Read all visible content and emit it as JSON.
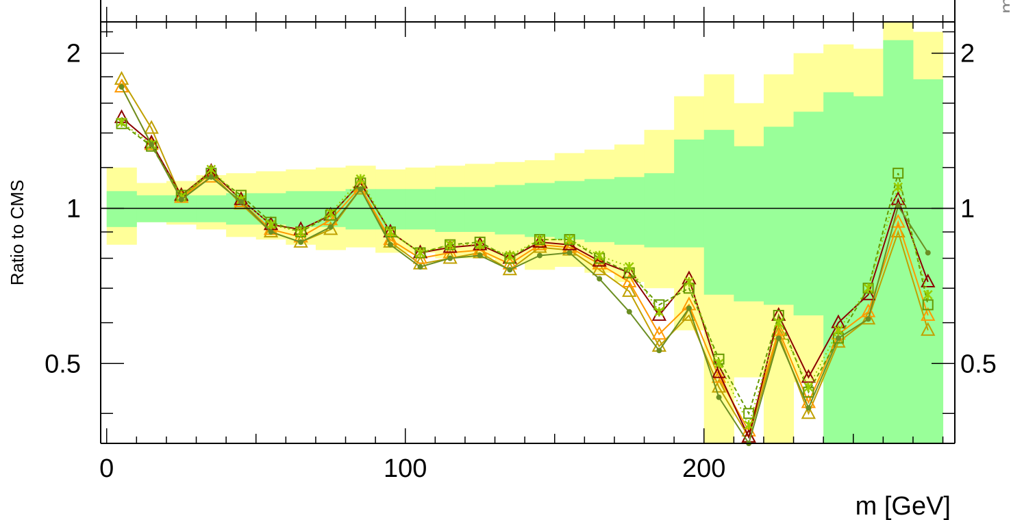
{
  "chart_data": {
    "type": "line",
    "ylabel": "Ratio to CMS",
    "xlabel": "m [GeV]",
    "corner_label": "m",
    "xlim": [
      -2,
      284
    ],
    "ylim": [
      0.35,
      2.3
    ],
    "y_log": true,
    "reference_line": 1,
    "x_ticks": [
      0,
      100,
      200
    ],
    "x_tick_labels": [
      "0",
      "100",
      "200"
    ],
    "y_ticks": [
      0.5,
      1,
      2
    ],
    "y_tick_labels": [
      "0.5",
      "1",
      "2"
    ],
    "bands": {
      "edges": [
        0,
        10,
        20,
        30,
        40,
        50,
        60,
        70,
        80,
        90,
        100,
        110,
        120,
        130,
        140,
        150,
        160,
        170,
        180,
        190,
        200,
        210,
        220,
        230,
        240,
        250,
        260,
        270,
        280
      ],
      "inner": {
        "color": "#99ff99",
        "lower": [
          0.92,
          0.94,
          0.94,
          0.94,
          0.93,
          0.93,
          0.92,
          0.92,
          0.91,
          0.91,
          0.91,
          0.9,
          0.9,
          0.89,
          0.88,
          0.87,
          0.86,
          0.85,
          0.84,
          0.84,
          0.68,
          0.66,
          0.65,
          0.62,
          0.35,
          0.35,
          0.35,
          0.35
        ],
        "upper": [
          1.08,
          1.06,
          1.06,
          1.06,
          1.07,
          1.07,
          1.08,
          1.08,
          1.09,
          1.09,
          1.09,
          1.1,
          1.1,
          1.11,
          1.12,
          1.13,
          1.14,
          1.15,
          1.17,
          1.36,
          1.42,
          1.32,
          1.44,
          1.54,
          1.68,
          1.65,
          2.12,
          1.78
        ]
      },
      "outer": {
        "color": "#ffff99",
        "lower": [
          0.85,
          0.94,
          0.93,
          0.91,
          0.88,
          0.87,
          0.85,
          0.83,
          0.84,
          0.82,
          0.82,
          0.8,
          0.8,
          0.78,
          0.76,
          0.77,
          0.75,
          0.72,
          0.7,
          0.58,
          0.35,
          0.47,
          0.35,
          0.46,
          0.35,
          0.35,
          0.51,
          0.35
        ],
        "upper": [
          1.2,
          1.12,
          1.13,
          1.16,
          1.17,
          1.18,
          1.19,
          1.2,
          1.21,
          1.19,
          1.2,
          1.21,
          1.22,
          1.23,
          1.24,
          1.28,
          1.3,
          1.33,
          1.42,
          1.65,
          1.82,
          1.6,
          1.82,
          2.0,
          2.08,
          2.04,
          2.3,
          2.2
        ]
      }
    },
    "x": [
      5,
      15,
      25,
      35,
      45,
      55,
      65,
      75,
      85,
      95,
      105,
      115,
      125,
      135,
      145,
      155,
      165,
      175,
      185,
      195,
      205,
      215,
      225,
      235,
      245,
      255,
      265,
      275
    ],
    "series": [
      {
        "color": "#c0a000",
        "marker": "triangle-open",
        "dash": "",
        "values": [
          1.78,
          1.43,
          1.05,
          1.17,
          1.02,
          0.9,
          0.86,
          0.91,
          1.09,
          0.86,
          0.78,
          0.8,
          0.82,
          0.76,
          0.84,
          0.83,
          0.76,
          0.69,
          0.54,
          0.62,
          0.45,
          0.36,
          0.57,
          0.4,
          0.55,
          0.61,
          0.9,
          0.58
        ]
      },
      {
        "color": "#ff9900",
        "marker": "triangle-open",
        "dash": "",
        "values": [
          1.72,
          1.33,
          1.05,
          1.15,
          1.03,
          0.91,
          0.88,
          0.95,
          1.1,
          0.87,
          0.8,
          0.82,
          0.83,
          0.78,
          0.85,
          0.84,
          0.78,
          0.72,
          0.57,
          0.65,
          0.47,
          0.37,
          0.58,
          0.42,
          0.57,
          0.63,
          0.94,
          0.62
        ]
      },
      {
        "color": "#8b0000",
        "marker": "triangle-open",
        "dash": "",
        "values": [
          1.5,
          1.34,
          1.06,
          1.18,
          1.04,
          0.93,
          0.91,
          0.97,
          1.12,
          0.9,
          0.82,
          0.84,
          0.85,
          0.8,
          0.86,
          0.85,
          0.79,
          0.75,
          0.62,
          0.73,
          0.48,
          0.36,
          0.62,
          0.47,
          0.6,
          0.68,
          1.04,
          0.72
        ]
      },
      {
        "color": "#669900",
        "marker": "square-open",
        "dash": "6,4",
        "values": [
          1.46,
          1.32,
          1.06,
          1.17,
          1.06,
          0.94,
          0.9,
          0.97,
          1.12,
          0.9,
          0.82,
          0.85,
          0.86,
          0.8,
          0.87,
          0.87,
          0.8,
          0.75,
          0.65,
          0.7,
          0.51,
          0.4,
          0.62,
          0.44,
          0.56,
          0.7,
          1.17,
          0.65
        ]
      },
      {
        "color": "#99cc00",
        "marker": "star",
        "dash": "2,4",
        "values": [
          1.47,
          1.33,
          1.05,
          1.19,
          1.04,
          0.93,
          0.9,
          0.98,
          1.14,
          0.9,
          0.82,
          0.85,
          0.85,
          0.81,
          0.87,
          0.87,
          0.81,
          0.77,
          0.63,
          0.72,
          0.5,
          0.38,
          0.6,
          0.45,
          0.58,
          0.7,
          1.1,
          0.68
        ]
      },
      {
        "color": "#6b8e23",
        "marker": "dot",
        "dash": "",
        "values": [
          1.72,
          1.33,
          1.04,
          1.15,
          1.03,
          0.9,
          0.86,
          0.92,
          1.09,
          0.85,
          0.77,
          0.8,
          0.81,
          0.76,
          0.81,
          0.82,
          0.73,
          0.63,
          0.53,
          0.64,
          0.43,
          0.35,
          0.56,
          0.41,
          0.56,
          0.61,
          1.01,
          0.82
        ]
      }
    ]
  }
}
